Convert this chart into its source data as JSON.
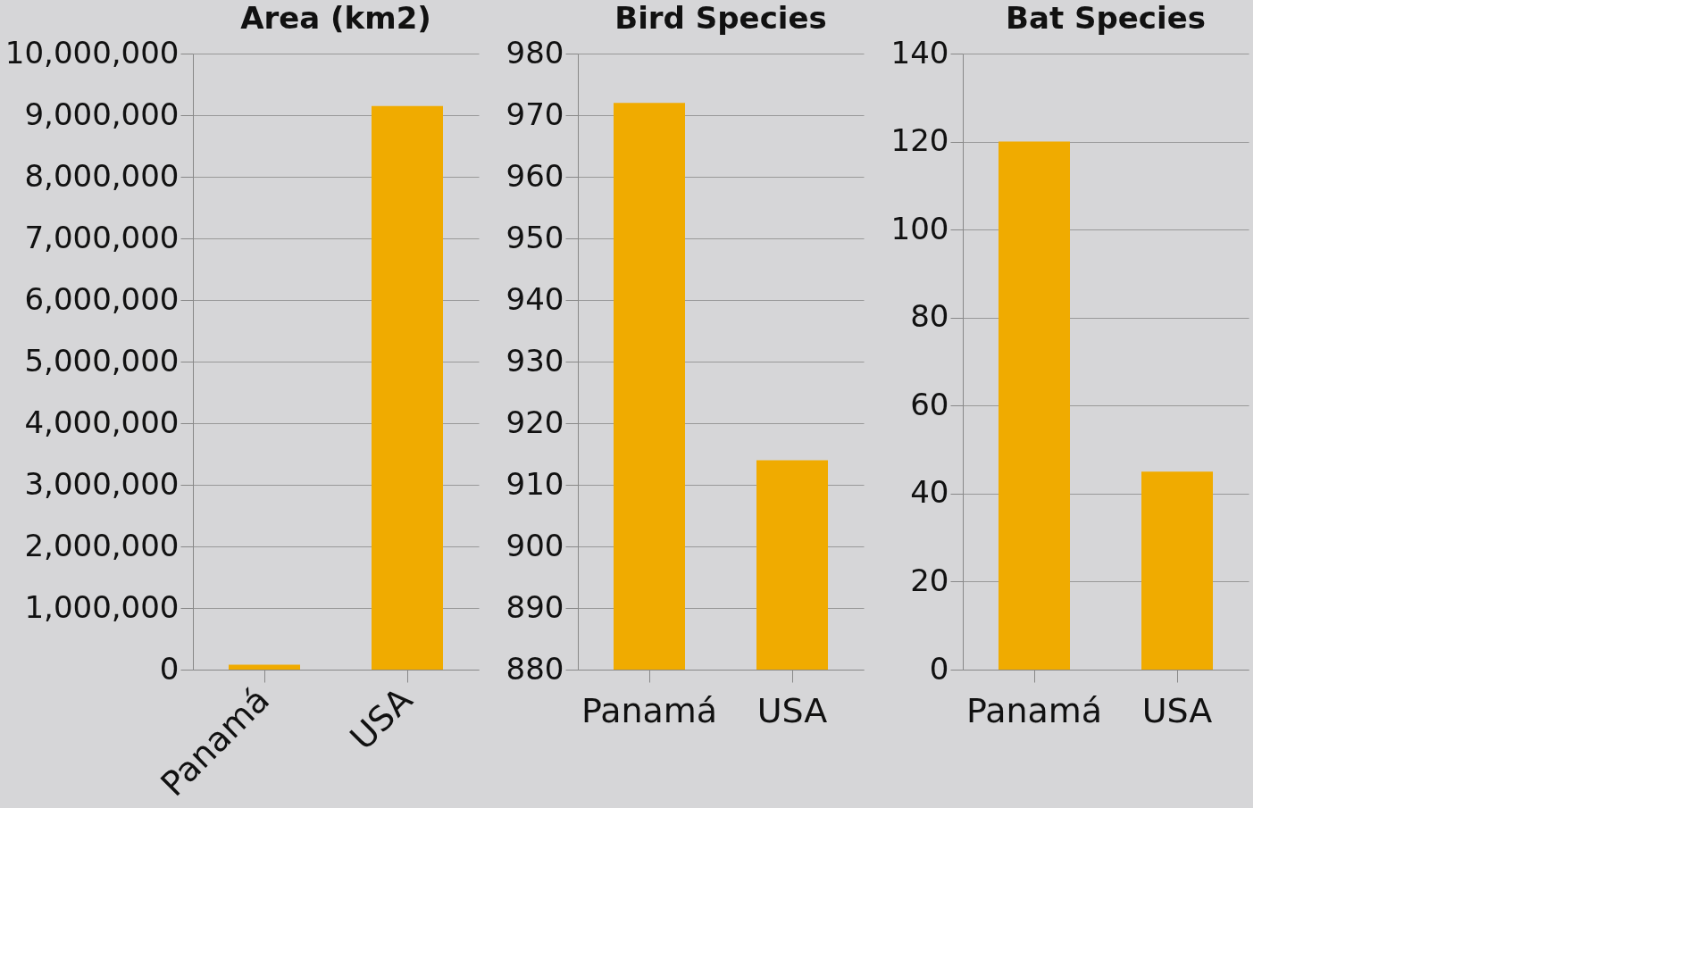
{
  "chart_data": [
    {
      "type": "bar",
      "title": "Area (km2)",
      "categories": [
        "Panamá",
        "USA"
      ],
      "values": [
        80000,
        9150000
      ],
      "color": "#f0ab00",
      "ylim": [
        0,
        10000000
      ],
      "yticks": [
        {
          "value": 0,
          "label": "0"
        },
        {
          "value": 1000000,
          "label": "1,000,000"
        },
        {
          "value": 2000000,
          "label": "2,000,000"
        },
        {
          "value": 3000000,
          "label": "3,000,000"
        },
        {
          "value": 4000000,
          "label": "4,000,000"
        },
        {
          "value": 5000000,
          "label": "5,000,000"
        },
        {
          "value": 6000000,
          "label": "6,000,000"
        },
        {
          "value": 7000000,
          "label": "7,000,000"
        },
        {
          "value": 8000000,
          "label": "8,000,000"
        },
        {
          "value": 9000000,
          "label": "9,000,000"
        },
        {
          "value": 10000000,
          "label": "10,000,000"
        }
      ],
      "grid": "y"
    },
    {
      "type": "bar",
      "title": "Bird Species",
      "categories": [
        "Panamá",
        "USA"
      ],
      "values": [
        972,
        914
      ],
      "color": "#f0ab00",
      "ylim": [
        880,
        980
      ],
      "yticks": [
        880,
        890,
        900,
        910,
        920,
        930,
        940,
        950,
        960,
        970,
        980
      ],
      "grid": "y"
    },
    {
      "type": "bar",
      "title": "Bat Species",
      "categories": [
        "Panamá",
        "USA"
      ],
      "values": [
        120,
        45
      ],
      "color": "#f0ab00",
      "ylim": [
        0,
        140
      ],
      "yticks": [
        0,
        20,
        40,
        60,
        80,
        100,
        120,
        140
      ],
      "grid": "y"
    }
  ]
}
